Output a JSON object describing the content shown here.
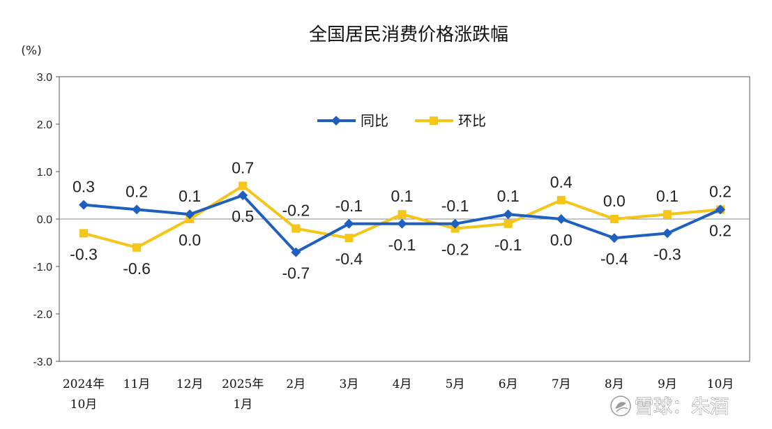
{
  "chart_data": {
    "type": "line",
    "title": "全国居民消费价格涨跌幅",
    "unit_label": "(%)",
    "categories": [
      [
        "2024年",
        "10月"
      ],
      [
        "11月"
      ],
      [
        "12月"
      ],
      [
        "2025年",
        "1月"
      ],
      [
        "2月"
      ],
      [
        "3月"
      ],
      [
        "4月"
      ],
      [
        "5月"
      ],
      [
        "6月"
      ],
      [
        "7月"
      ],
      [
        "8月"
      ],
      [
        "9月"
      ],
      [
        "10月"
      ]
    ],
    "ylim": [
      -3.0,
      3.0
    ],
    "yticks": [
      "3.0",
      "2.0",
      "1.0",
      "0.0",
      "-1.0",
      "-2.0",
      "-3.0"
    ],
    "ytick_values": [
      3,
      2,
      1,
      0,
      -1,
      -2,
      -3
    ],
    "grid": false,
    "legend_position": "top-center",
    "series": [
      {
        "name": "同比",
        "color": "#1f5fbf",
        "marker": "diamond",
        "values": [
          0.3,
          0.2,
          0.1,
          0.5,
          -0.7,
          -0.1,
          -0.1,
          -0.1,
          0.1,
          0.0,
          -0.4,
          -0.3,
          0.2
        ],
        "labels": [
          "0.3",
          "0.2",
          "0.1",
          "0.5",
          "-0.7",
          "-0.1",
          "-0.1",
          "-0.1",
          "0.1",
          "0.0",
          "-0.4",
          "-0.3",
          "0.2"
        ]
      },
      {
        "name": "环比",
        "color": "#f5c518",
        "marker": "square",
        "values": [
          -0.3,
          -0.6,
          0.0,
          0.7,
          -0.2,
          -0.4,
          0.1,
          -0.2,
          -0.1,
          0.4,
          0.0,
          0.1,
          0.2
        ],
        "labels": [
          "-0.3",
          "-0.6",
          "0.0",
          "0.7",
          "-0.2",
          "-0.4",
          "0.1",
          "-0.2",
          "-0.1",
          "0.4",
          "0.0",
          "0.1",
          "0.2"
        ]
      }
    ]
  },
  "watermark": {
    "text": "雪球：朱酒",
    "icon": "snowball-logo-icon"
  }
}
